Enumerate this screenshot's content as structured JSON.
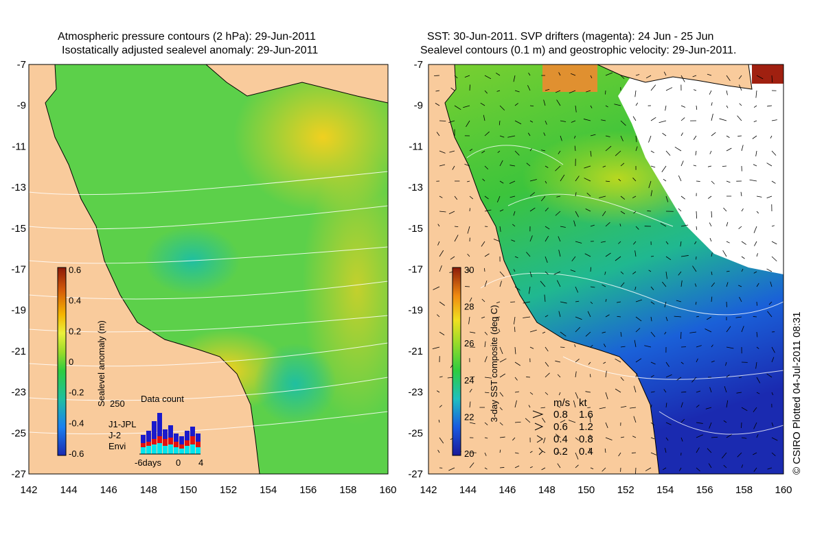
{
  "left_panel": {
    "title_line1": "Atmospheric pressure contours (2 hPa): 29-Jun-2011",
    "title_line2": "Isostatically adjusted sealevel anomaly: 29-Jun-2011",
    "colorbar": {
      "label": "Sealevel anomaly (m)",
      "ticks": [
        "0.6",
        "0.4",
        "0.2",
        "0",
        "-0.2",
        "-0.4",
        "-0.6"
      ],
      "colors": [
        "#8b1a0a",
        "#d45a0a",
        "#f5b500",
        "#eaf03a",
        "#2ecc40",
        "#1fbfa0",
        "#1a7ff0",
        "#1a2ab0"
      ]
    },
    "inset": {
      "title": "Data count",
      "ymax_label": "250",
      "xlabels": [
        "-6days",
        "0",
        "4"
      ],
      "legend": [
        {
          "name": "J1-JPL",
          "color": "#1a1acc"
        },
        {
          "name": "J-2",
          "color": "#e01010"
        },
        {
          "name": "Envi",
          "color": "#00e5ee"
        }
      ]
    }
  },
  "right_panel": {
    "title_line1": "SST: 30-Jun-2011. SVP drifters (magenta): 24 Jun - 25 Jun",
    "title_line2": "Sealevel contours (0.1 m) and geostrophic velocity: 29-Jun-2011.",
    "colorbar": {
      "label": "3-day SST composite (deg C)",
      "ticks": [
        "30",
        "28",
        "26",
        "24",
        "22",
        "20"
      ],
      "colors": [
        "#8b1a0a",
        "#d45a0a",
        "#f5b500",
        "#9adb2a",
        "#2ecc40",
        "#1fbfa0",
        "#1a7ff0",
        "#1a2ab0"
      ]
    },
    "speed_legend": {
      "header_ms": "m/s",
      "header_kt": "kt",
      "rows": [
        {
          "ms": "0.8",
          "kt": "1.6"
        },
        {
          "ms": "0.6",
          "kt": "1.2"
        },
        {
          "ms": "0.4",
          "kt": "0.8"
        },
        {
          "ms": "0.2",
          "kt": "0.4"
        }
      ]
    }
  },
  "axes": {
    "y_labels": [
      "-7",
      "-9",
      "-11",
      "-13",
      "-15",
      "-17",
      "-19",
      "-21",
      "-23",
      "-25",
      "-27"
    ],
    "x_labels": [
      "142",
      "144",
      "146",
      "148",
      "150",
      "152",
      "154",
      "156",
      "158",
      "160"
    ]
  },
  "credit": "© CSIRO Plotted 04-Jul-2011 08:31",
  "colors": {
    "land": "#f9cb9c",
    "coast": "#000000",
    "contour": "#ffffff"
  }
}
